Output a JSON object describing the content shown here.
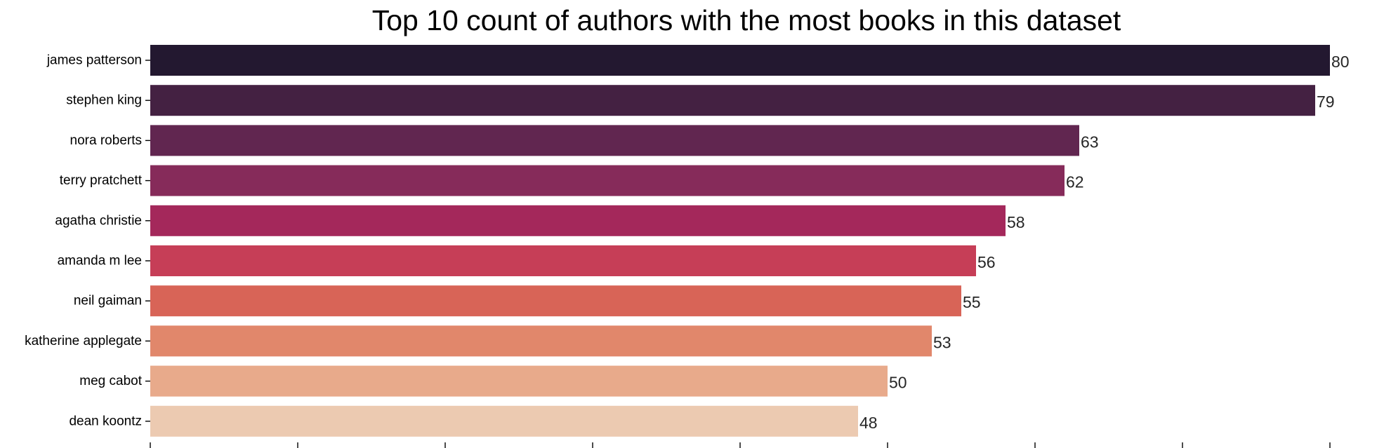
{
  "chart_data": {
    "type": "bar",
    "orientation": "horizontal",
    "title": "Top 10 count of authors with the most books in this dataset",
    "xlabel": "",
    "ylabel": "",
    "categories": [
      "james patterson",
      "stephen king",
      "nora roberts",
      "terry pratchett",
      "agatha christie",
      "amanda m lee",
      "neil gaiman",
      "katherine applegate",
      "meg cabot",
      "dean koontz"
    ],
    "values": [
      80,
      79,
      63,
      62,
      58,
      56,
      55,
      53,
      50,
      48
    ],
    "data_labels": [
      "80",
      "79",
      "63",
      "62",
      "58",
      "56",
      "55",
      "53",
      "50",
      "48"
    ],
    "colors": [
      "#231830",
      "#442142",
      "#612650",
      "#862b5a",
      "#a4285b",
      "#c63e57",
      "#d86457",
      "#e1876b",
      "#e8aa8b",
      "#eccab1"
    ],
    "xlim": [
      0,
      80
    ],
    "x_tick_values": [
      0,
      10,
      20,
      30,
      40,
      50,
      60,
      70,
      80
    ],
    "x_tick_labels_shown": false,
    "grid": false
  }
}
